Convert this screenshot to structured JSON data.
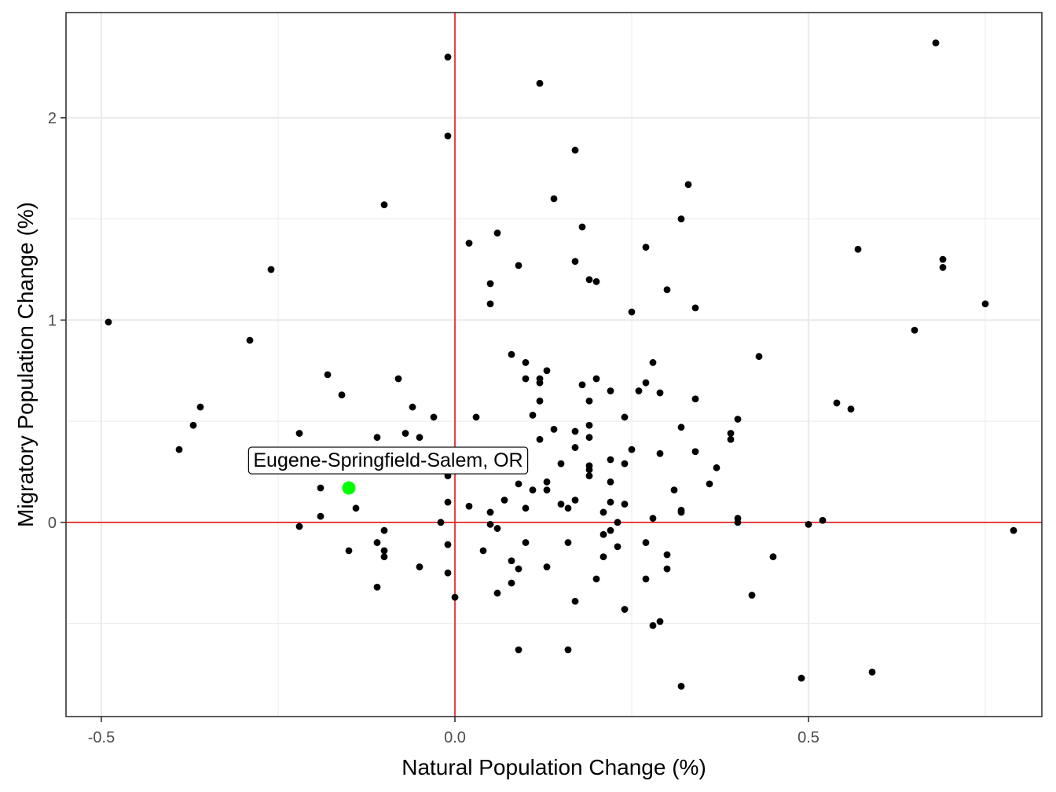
{
  "chart_data": {
    "type": "scatter",
    "title": "",
    "xlabel": "Natural Population Change (%)",
    "ylabel": "Migratory Population Change (%)",
    "xlim": [
      -0.55,
      0.83
    ],
    "ylim": [
      -0.96,
      2.52
    ],
    "x_ticks": [
      {
        "value": -0.5,
        "label": "-0.5"
      },
      {
        "value": 0.0,
        "label": "0.0"
      },
      {
        "value": 0.5,
        "label": "0.5"
      }
    ],
    "y_ticks": [
      {
        "value": 0,
        "label": "0"
      },
      {
        "value": 1,
        "label": "1"
      },
      {
        "value": 2,
        "label": "2"
      }
    ],
    "x_minor": [
      -0.25,
      0.25,
      0.75
    ],
    "y_minor": [
      -0.5,
      0.5,
      1.5
    ],
    "reference_lines": {
      "x": 0,
      "y": 0,
      "color": "#e31a1c"
    },
    "grid": true,
    "colors": {
      "points": "#000000",
      "highlight": "#00ff00",
      "grid": "#ebebeb",
      "panel_border": "#333333",
      "ticks": "#4d4d4d"
    },
    "highlight": {
      "label": "Eugene-Springfield-Salem, OR",
      "x": -0.15,
      "y": 0.17
    },
    "points": [
      [
        -0.49,
        0.99
      ],
      [
        -0.39,
        0.36
      ],
      [
        -0.37,
        0.48
      ],
      [
        -0.36,
        0.57
      ],
      [
        -0.26,
        1.25
      ],
      [
        -0.29,
        0.9
      ],
      [
        -0.22,
        0.44
      ],
      [
        -0.22,
        -0.02
      ],
      [
        -0.18,
        0.73
      ],
      [
        -0.16,
        0.63
      ],
      [
        -0.19,
        0.17
      ],
      [
        -0.19,
        0.03
      ],
      [
        -0.15,
        -0.14
      ],
      [
        -0.14,
        0.07
      ],
      [
        -0.1,
        1.57
      ],
      [
        -0.11,
        0.42
      ],
      [
        -0.11,
        -0.1
      ],
      [
        -0.1,
        -0.04
      ],
      [
        -0.1,
        -0.14
      ],
      [
        -0.1,
        -0.17
      ],
      [
        -0.11,
        -0.32
      ],
      [
        -0.08,
        0.71
      ],
      [
        -0.07,
        0.44
      ],
      [
        -0.06,
        0.57
      ],
      [
        -0.05,
        0.42
      ],
      [
        -0.05,
        -0.22
      ],
      [
        -0.03,
        0.52
      ],
      [
        -0.02,
        0.0
      ],
      [
        -0.01,
        2.3
      ],
      [
        -0.01,
        1.91
      ],
      [
        -0.01,
        0.23
      ],
      [
        -0.01,
        0.1
      ],
      [
        -0.01,
        -0.11
      ],
      [
        -0.01,
        -0.25
      ],
      [
        0.0,
        -0.37
      ],
      [
        0.02,
        1.38
      ],
      [
        0.02,
        0.08
      ],
      [
        0.03,
        0.52
      ],
      [
        0.04,
        -0.14
      ],
      [
        0.05,
        1.18
      ],
      [
        0.05,
        1.08
      ],
      [
        0.05,
        0.05
      ],
      [
        0.05,
        -0.01
      ],
      [
        0.06,
        1.43
      ],
      [
        0.06,
        -0.03
      ],
      [
        0.06,
        -0.35
      ],
      [
        0.07,
        0.11
      ],
      [
        0.08,
        0.83
      ],
      [
        0.08,
        -0.19
      ],
      [
        0.08,
        -0.3
      ],
      [
        0.09,
        1.27
      ],
      [
        0.09,
        0.19
      ],
      [
        0.09,
        -0.23
      ],
      [
        0.09,
        -0.63
      ],
      [
        0.1,
        0.79
      ],
      [
        0.1,
        0.71
      ],
      [
        0.1,
        0.07
      ],
      [
        0.1,
        -0.1
      ],
      [
        0.11,
        0.53
      ],
      [
        0.11,
        0.16
      ],
      [
        0.12,
        2.17
      ],
      [
        0.12,
        0.71
      ],
      [
        0.12,
        0.69
      ],
      [
        0.12,
        0.6
      ],
      [
        0.12,
        0.41
      ],
      [
        0.13,
        0.75
      ],
      [
        0.13,
        0.2
      ],
      [
        0.13,
        0.16
      ],
      [
        0.13,
        -0.22
      ],
      [
        0.14,
        1.6
      ],
      [
        0.14,
        0.46
      ],
      [
        0.15,
        0.29
      ],
      [
        0.15,
        0.09
      ],
      [
        0.16,
        0.07
      ],
      [
        0.16,
        -0.1
      ],
      [
        0.16,
        -0.63
      ],
      [
        0.17,
        1.84
      ],
      [
        0.17,
        1.29
      ],
      [
        0.17,
        0.45
      ],
      [
        0.17,
        0.37
      ],
      [
        0.17,
        0.11
      ],
      [
        0.17,
        -0.39
      ],
      [
        0.18,
        1.46
      ],
      [
        0.18,
        0.68
      ],
      [
        0.19,
        1.2
      ],
      [
        0.19,
        0.6
      ],
      [
        0.19,
        0.48
      ],
      [
        0.19,
        0.42
      ],
      [
        0.19,
        0.28
      ],
      [
        0.19,
        0.26
      ],
      [
        0.19,
        0.23
      ],
      [
        0.2,
        1.19
      ],
      [
        0.2,
        0.71
      ],
      [
        0.2,
        -0.28
      ],
      [
        0.21,
        0.05
      ],
      [
        0.21,
        -0.06
      ],
      [
        0.21,
        -0.17
      ],
      [
        0.22,
        0.65
      ],
      [
        0.22,
        0.31
      ],
      [
        0.22,
        0.2
      ],
      [
        0.22,
        0.1
      ],
      [
        0.22,
        -0.04
      ],
      [
        0.23,
        0.0
      ],
      [
        0.23,
        -0.12
      ],
      [
        0.24,
        0.52
      ],
      [
        0.24,
        0.29
      ],
      [
        0.24,
        0.09
      ],
      [
        0.24,
        -0.43
      ],
      [
        0.25,
        1.04
      ],
      [
        0.25,
        0.36
      ],
      [
        0.26,
        0.65
      ],
      [
        0.27,
        1.36
      ],
      [
        0.27,
        0.69
      ],
      [
        0.27,
        -0.1
      ],
      [
        0.27,
        -0.28
      ],
      [
        0.28,
        0.79
      ],
      [
        0.28,
        0.02
      ],
      [
        0.28,
        -0.51
      ],
      [
        0.29,
        0.64
      ],
      [
        0.29,
        0.34
      ],
      [
        0.29,
        -0.49
      ],
      [
        0.3,
        1.15
      ],
      [
        0.3,
        -0.16
      ],
      [
        0.3,
        -0.23
      ],
      [
        0.31,
        0.16
      ],
      [
        0.32,
        1.5
      ],
      [
        0.32,
        0.47
      ],
      [
        0.32,
        0.06
      ],
      [
        0.32,
        0.05
      ],
      [
        0.32,
        -0.81
      ],
      [
        0.33,
        1.67
      ],
      [
        0.34,
        1.06
      ],
      [
        0.34,
        0.61
      ],
      [
        0.34,
        0.35
      ],
      [
        0.36,
        0.19
      ],
      [
        0.37,
        0.27
      ],
      [
        0.39,
        0.44
      ],
      [
        0.39,
        0.41
      ],
      [
        0.4,
        0.51
      ],
      [
        0.4,
        0.02
      ],
      [
        0.4,
        0.0
      ],
      [
        0.42,
        -0.36
      ],
      [
        0.43,
        0.82
      ],
      [
        0.45,
        -0.17
      ],
      [
        0.49,
        -0.77
      ],
      [
        0.5,
        -0.01
      ],
      [
        0.52,
        0.01
      ],
      [
        0.54,
        0.59
      ],
      [
        0.56,
        0.56
      ],
      [
        0.57,
        1.35
      ],
      [
        0.59,
        -0.74
      ],
      [
        0.65,
        0.95
      ],
      [
        0.68,
        2.37
      ],
      [
        0.69,
        1.3
      ],
      [
        0.69,
        1.26
      ],
      [
        0.75,
        1.08
      ],
      [
        0.79,
        -0.04
      ]
    ]
  }
}
